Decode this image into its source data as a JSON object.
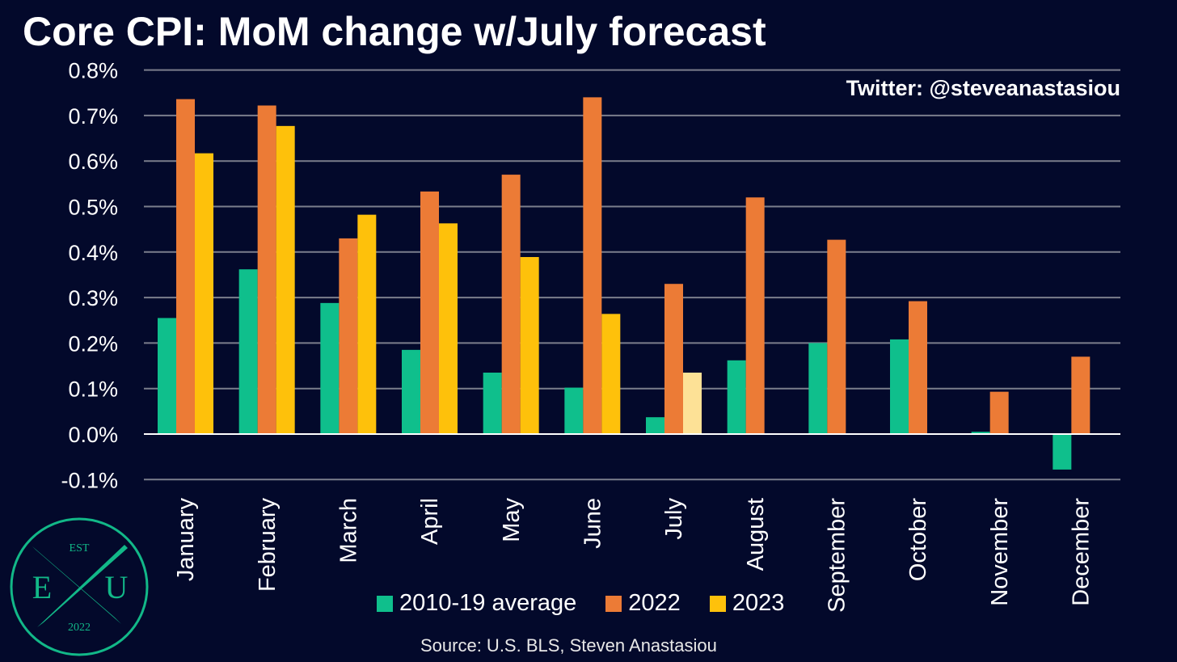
{
  "title": "Core CPI: MoM change w/July forecast",
  "watermark": "Twitter: @steveanastasiou",
  "source": "Source: U.S. BLS, Steven Anastasiou",
  "logo": {
    "top": "EST",
    "left": "E",
    "right": "U",
    "bottom": "2022"
  },
  "colors": {
    "background": "#03092b",
    "avg": "#0fbf8c",
    "y2022": "#ec7b36",
    "y2023": "#fec10b",
    "forecast": "#fde196",
    "grid": "#7b7e8c",
    "logo": "#12b888"
  },
  "legend": [
    {
      "label": "2010-19 average",
      "color": "#0fbf8c"
    },
    {
      "label": "2022",
      "color": "#ec7b36"
    },
    {
      "label": "2023",
      "color": "#fec10b"
    }
  ],
  "chart_data": {
    "type": "bar",
    "title": "Core CPI: MoM change w/July forecast",
    "categories": [
      "January",
      "February",
      "March",
      "April",
      "May",
      "June",
      "July",
      "August",
      "September",
      "October",
      "November",
      "December"
    ],
    "series": [
      {
        "name": "2010-19 average",
        "color": "#0fbf8c",
        "values": [
          0.255,
          0.362,
          0.288,
          0.185,
          0.135,
          0.102,
          0.037,
          0.162,
          0.2,
          0.208,
          0.005,
          -0.078
        ]
      },
      {
        "name": "2022",
        "color": "#ec7b36",
        "values": [
          0.736,
          0.722,
          0.43,
          0.533,
          0.57,
          0.74,
          0.33,
          0.52,
          0.427,
          0.292,
          0.093,
          0.17
        ]
      },
      {
        "name": "2023",
        "color": "#fec10b",
        "values": [
          0.617,
          0.677,
          0.482,
          0.463,
          0.389,
          0.264,
          0.135,
          null,
          null,
          null,
          null,
          null
        ],
        "forecast_index": 6,
        "forecast_color": "#fde196"
      }
    ],
    "yticks": [
      "0.8%",
      "0.7%",
      "0.6%",
      "0.5%",
      "0.4%",
      "0.3%",
      "0.2%",
      "0.1%",
      "0.0%",
      "-0.1%"
    ],
    "ytick_values": [
      0.8,
      0.7,
      0.6,
      0.5,
      0.4,
      0.3,
      0.2,
      0.1,
      0.0,
      -0.1
    ],
    "ylim": [
      -0.1,
      0.8
    ],
    "grid": true,
    "legend_position": "bottom"
  }
}
